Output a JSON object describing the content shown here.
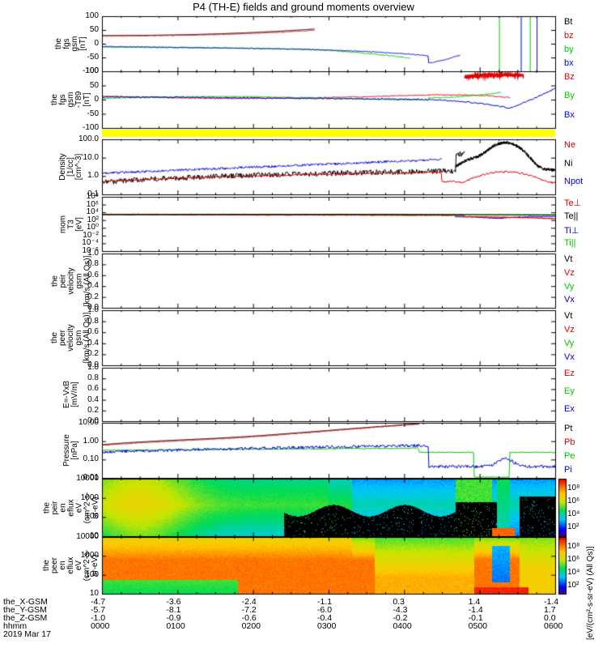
{
  "chart_data": {
    "type": "line",
    "title": "P4 (TH-E) fields and ground moments overview",
    "date_label": "2019 Mar 17",
    "time_labels": [
      "0000",
      "0100",
      "0200",
      "0300",
      "0400",
      "0500",
      "0600"
    ],
    "orbit_rows": [
      {
        "name": "the_X-GSM",
        "values": [
          "-4.7",
          "-3.6",
          "-2.4",
          "-1.1",
          "0.3",
          "1.4",
          "-1.4"
        ]
      },
      {
        "name": "the_Y-GSM",
        "values": [
          "-5.7",
          "-8.1",
          "-7.2",
          "-6.0",
          "-4.3",
          "-1.4",
          "1.7"
        ]
      },
      {
        "name": "the_Z-GSM",
        "values": [
          "-1.0",
          "-0.9",
          "-0.6",
          "-0.4",
          "-0.2",
          "-0.1",
          "0.0"
        ]
      },
      {
        "name": "hhmm",
        "values": [
          "0000",
          "0100",
          "0200",
          "0300",
          "0400",
          "0500",
          "0600"
        ]
      }
    ],
    "panels": [
      {
        "id": "fgs",
        "ylabel": "the\nfgs\ngsm\n[nT]",
        "scale": "linear",
        "ylim": [
          -100,
          100
        ],
        "ticks": [
          "100",
          "50",
          "0",
          "-50",
          "-100"
        ],
        "legend": [
          "Bt",
          "bz",
          "by",
          "bx"
        ]
      },
      {
        "id": "fgs-dc",
        "ylabel": "the\nfgs\ngsm\n-T89\n[nT]",
        "scale": "linear",
        "ylim": [
          -130,
          110
        ],
        "ticks": [
          "100",
          "50",
          "0",
          "-50",
          "-100"
        ],
        "legend": [
          "Bz",
          "By",
          "Bx"
        ]
      },
      {
        "id": "density",
        "ylabel": "Density\n[1/cc]\n[cm^-3]",
        "scale": "log",
        "ylim": [
          0.05,
          200
        ],
        "ticks": [
          "100.0",
          "10.0",
          "1.0",
          "0.1"
        ],
        "legend": [
          "Ne",
          "Ni",
          "Npot"
        ]
      },
      {
        "id": "temperature",
        "ylabel": "mom\nT3\n[eV]",
        "scale": "log",
        "ylim": [
          1e-06,
          100000000.0
        ],
        "ticks": [
          "10⁸",
          "10⁶",
          "10⁴",
          "10²",
          "10⁰",
          "10⁻²",
          "10⁻⁴",
          "10⁻⁶"
        ],
        "legend": [
          "Te⊥",
          "Te||",
          "Ti⊥",
          "Ti||"
        ]
      },
      {
        "id": "vi",
        "ylabel": "the\npeir\nvelocity\ngsm\n[km/s (All Qs)]",
        "scale": "linear",
        "ylim": [
          0,
          1
        ],
        "ticks": [
          "1.0",
          "0.8",
          "0.6",
          "0.4",
          "0.2",
          "0.0"
        ],
        "legend": [
          "Vt",
          "Vz",
          "Vy",
          "Vx"
        ]
      },
      {
        "id": "ve",
        "ylabel": "the\npeer\nvelocity\ngsm\n[km/s (All Qs)]",
        "scale": "linear",
        "ylim": [
          0,
          1
        ],
        "ticks": [
          "1.0",
          "0.8",
          "0.6",
          "0.4",
          "0.2",
          "0.0"
        ],
        "legend": [
          "Vt",
          "Vz",
          "Vy",
          "Vx"
        ]
      },
      {
        "id": "efield",
        "ylabel": "E=-VxB\n[mV/m]",
        "scale": "linear",
        "ylim": [
          0,
          1
        ],
        "ticks": [
          "1.0",
          "0.8",
          "0.6",
          "0.4",
          "0.2",
          "0.0"
        ],
        "legend": [
          "Ez",
          "Ey",
          "Ex"
        ]
      },
      {
        "id": "pressure",
        "ylabel": "Pressure\n[nPa]",
        "scale": "log",
        "ylim": [
          0.004,
          10
        ],
        "ticks": [
          "10.00",
          "1.00",
          "0.10",
          "0.01"
        ],
        "legend": [
          "Pt",
          "Pb",
          "Pe",
          "Pi"
        ]
      },
      {
        "id": "ion-spec",
        "ylabel": "the\npeir\nen\neflux\neV\n(cm^2-s-\nsr-eV)",
        "scale": "log",
        "ylim": [
          5,
          20000
        ],
        "ticks": [
          "10000",
          "1000",
          "100",
          "10"
        ],
        "legend": []
      },
      {
        "id": "ele-spec",
        "ylabel": "the\npeer\nen\neflux\neV\n(cm^2-s-\nsr-eV)",
        "scale": "log",
        "ylim": [
          5,
          20000
        ],
        "ticks": [
          "10000",
          "1000",
          "100",
          "10"
        ],
        "legend": []
      }
    ],
    "colorbar": {
      "labels": [
        "10⁸",
        "10⁶",
        "10⁴",
        "10²"
      ],
      "title": "[eV/(cm²-s-sr-eV) (All Qs)]"
    },
    "series_colors": {
      "black": "#000000",
      "red": "#e00000",
      "green": "#00c800",
      "blue": "#0000e0",
      "yellow": "#ffff00"
    }
  }
}
